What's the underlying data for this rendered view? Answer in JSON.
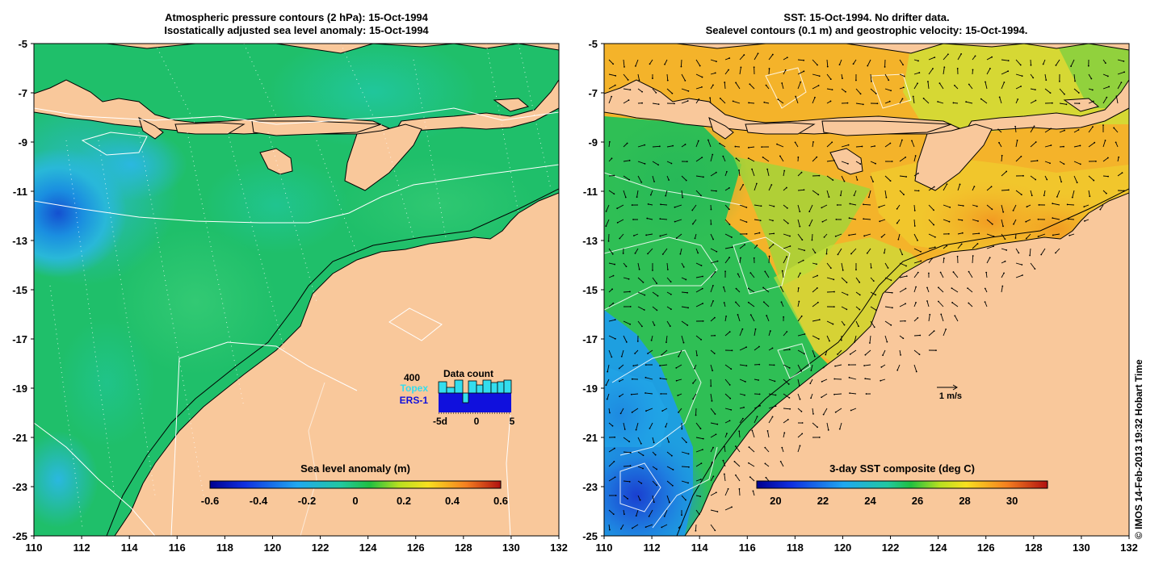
{
  "left_panel": {
    "title_line1": "Atmospheric pressure contours (2 hPa): 15-Oct-1994",
    "title_line2": "Isostatically adjusted sea level anomaly: 15-Oct-1994",
    "colorbar": {
      "label": "Sea level anomaly (m)",
      "ticks": [
        "-0.6",
        "-0.4",
        "-0.2",
        "0",
        "0.2",
        "0.4",
        "0.6"
      ]
    },
    "data_count": {
      "max_label": "400",
      "title": "Data count",
      "series": [
        {
          "name": "Topex",
          "color": "#33ddee"
        },
        {
          "name": "ERS-1",
          "color": "#1010dd"
        }
      ],
      "ticks": [
        "-5d",
        "0",
        "5"
      ]
    }
  },
  "right_panel": {
    "title_line1": "SST: 15-Oct-1994. No drifter data.",
    "title_line2": "Sealevel contours (0.1 m) and geostrophic velocity: 15-Oct-1994.",
    "colorbar": {
      "label": "3-day SST composite (deg C)",
      "ticks": [
        "20",
        "22",
        "24",
        "26",
        "28",
        "30"
      ]
    },
    "scale_arrow_label": "1 m/s"
  },
  "axes": {
    "lon_ticks": [
      "110",
      "112",
      "114",
      "116",
      "118",
      "120",
      "122",
      "124",
      "126",
      "128",
      "130",
      "132"
    ],
    "lat_ticks": [
      "-5",
      "-7",
      "-9",
      "-11",
      "-13",
      "-15",
      "-17",
      "-19",
      "-21",
      "-23",
      "-25"
    ]
  },
  "credit": "© IMOS 14-Feb-2013 19:32 Hobart Time",
  "colors": {
    "land": "#f9c89b",
    "sla_ocean": "#1fbf6a",
    "sst_warm": "#f6a623",
    "sst_cool": "#1e5ad8"
  }
}
